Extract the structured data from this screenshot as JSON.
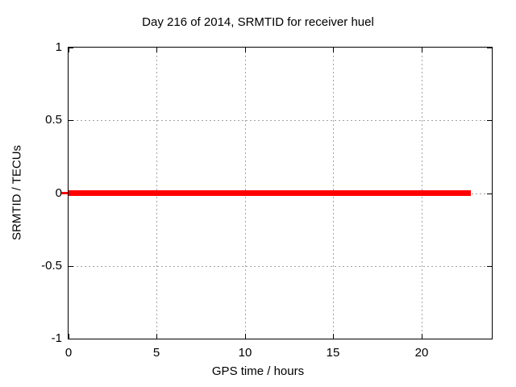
{
  "chart_data": {
    "type": "line",
    "title": "Day 216 of 2014, SRMTID for receiver huel",
    "xlabel": "GPS time / hours",
    "ylabel": "SRMTID / TECUs",
    "xlim": [
      0,
      24
    ],
    "ylim": [
      -1,
      1
    ],
    "xticks": {
      "values": [
        0,
        5,
        10,
        15,
        20
      ],
      "labels": [
        "0",
        "5",
        "10",
        "15",
        "20"
      ]
    },
    "yticks": {
      "values": [
        -1,
        -0.5,
        0,
        0.5,
        1
      ],
      "labels": [
        "-1",
        "-0.5",
        "0",
        "0.5",
        "1"
      ]
    },
    "grid": true,
    "legend": false,
    "series": [
      {
        "x": [
          0,
          22.8
        ],
        "y": [
          0,
          0
        ],
        "color": "#ff0000",
        "line_width": 7
      }
    ]
  },
  "colors": {
    "line": "#ff0000",
    "border": "#000000",
    "grid": "#a3a3a3",
    "background": "#ffffff"
  }
}
